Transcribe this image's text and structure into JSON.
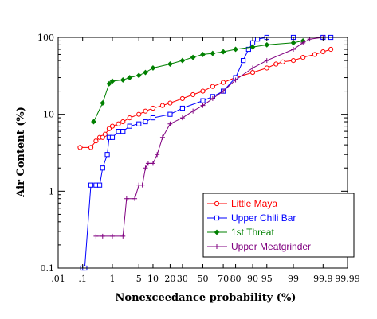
{
  "chart_data": {
    "type": "line",
    "xlabel": "Nonexceedance probability (%)",
    "ylabel": "Air Content (%)",
    "x_scale": "normal-probability",
    "y_scale": "log",
    "xlim": [
      0.01,
      99.99
    ],
    "ylim": [
      0.1,
      100
    ],
    "x_ticks": [
      {
        "value": 0.01,
        "label": ".01"
      },
      {
        "value": 0.1,
        "label": ".1"
      },
      {
        "value": 1,
        "label": "1"
      },
      {
        "value": 5,
        "label": "5"
      },
      {
        "value": 10,
        "label": "10"
      },
      {
        "value": 20,
        "label": "20"
      },
      {
        "value": 30,
        "label": "30"
      },
      {
        "value": 50,
        "label": "50"
      },
      {
        "value": 70,
        "label": "70"
      },
      {
        "value": 80,
        "label": "80"
      },
      {
        "value": 90,
        "label": "90"
      },
      {
        "value": 95,
        "label": "95"
      },
      {
        "value": 99,
        "label": "99"
      },
      {
        "value": 99.9,
        "label": "99.9"
      },
      {
        "value": 99.99,
        "label": "99.99"
      }
    ],
    "y_ticks": [
      {
        "value": 0.1,
        "label": "0.1"
      },
      {
        "value": 1,
        "label": "1"
      },
      {
        "value": 10,
        "label": "10"
      },
      {
        "value": 100,
        "label": "100"
      }
    ],
    "legend_position": "inside-lower-right",
    "series": [
      {
        "name": "Little Maya",
        "color": "#ff0000",
        "marker": "circle",
        "points": [
          [
            0.08,
            3.7
          ],
          [
            0.2,
            3.7
          ],
          [
            0.3,
            4.5
          ],
          [
            0.4,
            5
          ],
          [
            0.5,
            5
          ],
          [
            0.6,
            5.5
          ],
          [
            0.8,
            6.5
          ],
          [
            1,
            7
          ],
          [
            1.5,
            7.5
          ],
          [
            2,
            8
          ],
          [
            3,
            9
          ],
          [
            5,
            10
          ],
          [
            7,
            11
          ],
          [
            10,
            12
          ],
          [
            15,
            13
          ],
          [
            20,
            14
          ],
          [
            30,
            16
          ],
          [
            40,
            18
          ],
          [
            50,
            20
          ],
          [
            60,
            23
          ],
          [
            70,
            26
          ],
          [
            80,
            30
          ],
          [
            90,
            35
          ],
          [
            95,
            40
          ],
          [
            97,
            45
          ],
          [
            98,
            48
          ],
          [
            99,
            50
          ],
          [
            99.5,
            55
          ],
          [
            99.8,
            60
          ],
          [
            99.9,
            65
          ],
          [
            99.95,
            70
          ]
        ]
      },
      {
        "name": "Upper Chili Bar",
        "color": "#0000ff",
        "marker": "square",
        "points": [
          [
            0.1,
            0.1
          ],
          [
            0.12,
            0.1
          ],
          [
            0.2,
            1.2
          ],
          [
            0.3,
            1.2
          ],
          [
            0.4,
            1.2
          ],
          [
            0.5,
            2
          ],
          [
            0.7,
            3
          ],
          [
            0.8,
            5
          ],
          [
            1,
            5
          ],
          [
            1.5,
            6
          ],
          [
            2,
            6
          ],
          [
            3,
            7
          ],
          [
            5,
            7.5
          ],
          [
            7,
            8
          ],
          [
            10,
            9
          ],
          [
            20,
            10
          ],
          [
            30,
            12
          ],
          [
            50,
            15
          ],
          [
            60,
            17
          ],
          [
            70,
            20
          ],
          [
            80,
            30
          ],
          [
            85,
            50
          ],
          [
            88,
            70
          ],
          [
            90,
            85
          ],
          [
            92,
            95
          ],
          [
            95,
            100
          ],
          [
            99,
            100
          ],
          [
            99.9,
            100
          ],
          [
            99.95,
            100
          ]
        ]
      },
      {
        "name": "1st Threat",
        "color": "#008000",
        "marker": "diamond",
        "points": [
          [
            0.25,
            8
          ],
          [
            0.5,
            14
          ],
          [
            0.8,
            25
          ],
          [
            1,
            27
          ],
          [
            2,
            28
          ],
          [
            3,
            30
          ],
          [
            5,
            32
          ],
          [
            7,
            35
          ],
          [
            10,
            40
          ],
          [
            20,
            45
          ],
          [
            30,
            50
          ],
          [
            40,
            55
          ],
          [
            50,
            60
          ],
          [
            60,
            62
          ],
          [
            70,
            65
          ],
          [
            80,
            70
          ],
          [
            90,
            75
          ],
          [
            95,
            80
          ],
          [
            99,
            85
          ],
          [
            99.5,
            90
          ]
        ]
      },
      {
        "name": "Upper Meatgrinder",
        "color": "#800080",
        "marker": "plus",
        "points": [
          [
            0.3,
            0.26
          ],
          [
            0.5,
            0.26
          ],
          [
            1,
            0.26
          ],
          [
            2,
            0.26
          ],
          [
            2.5,
            0.8
          ],
          [
            4,
            0.8
          ],
          [
            5,
            1.2
          ],
          [
            6,
            1.2
          ],
          [
            7,
            2
          ],
          [
            8,
            2.3
          ],
          [
            10,
            2.3
          ],
          [
            12,
            3
          ],
          [
            15,
            5
          ],
          [
            20,
            7.5
          ],
          [
            30,
            9
          ],
          [
            40,
            11
          ],
          [
            50,
            13
          ],
          [
            60,
            16
          ],
          [
            70,
            20
          ],
          [
            80,
            28
          ],
          [
            90,
            40
          ],
          [
            95,
            50
          ],
          [
            99,
            70
          ],
          [
            99.5,
            85
          ],
          [
            99.7,
            95
          ],
          [
            99.9,
            100
          ]
        ]
      }
    ]
  },
  "colors": {
    "axis": "#000000",
    "background": "#ffffff"
  }
}
